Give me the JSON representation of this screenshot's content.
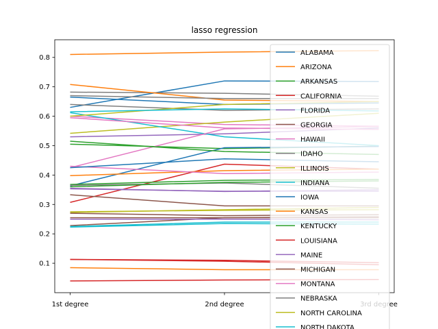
{
  "chart_data": {
    "type": "line",
    "title": "lasso regression",
    "xlabel": "",
    "ylabel": "",
    "categories": [
      "1st degree",
      "2nd degree",
      "3rd degree"
    ],
    "ylim": [
      0.0,
      0.86
    ],
    "yticks": [
      0.1,
      0.2,
      0.3,
      0.4,
      0.5,
      0.6,
      0.7,
      0.8
    ],
    "grid": false,
    "legend_position": "right",
    "series": [
      {
        "name": "ALABAMA",
        "color": "#1f77b4",
        "values": [
          0.63,
          0.72,
          0.718
        ]
      },
      {
        "name": "ARIZONA",
        "color": "#ff7f0e",
        "values": [
          0.81,
          0.818,
          0.823
        ]
      },
      {
        "name": "ARKANSAS",
        "color": "#2ca02c",
        "values": [
          0.505,
          0.49,
          0.498
        ]
      },
      {
        "name": "CALIFORNIA",
        "color": "#d62728",
        "values": [
          0.307,
          0.437,
          0.42
        ]
      },
      {
        "name": "FLORIDA",
        "color": "#9467bd",
        "values": [
          0.53,
          0.54,
          0.56
        ]
      },
      {
        "name": "GEORGIA",
        "color": "#8c564b",
        "values": [
          0.333,
          0.295,
          0.295
        ]
      },
      {
        "name": "HAWAII",
        "color": "#e377c2",
        "values": [
          0.6,
          0.572,
          0.566
        ]
      },
      {
        "name": "IDAHO",
        "color": "#7f7f7f",
        "values": [
          0.682,
          0.678,
          0.668
        ]
      },
      {
        "name": "ILLINOIS",
        "color": "#bcbd22",
        "values": [
          0.542,
          0.58,
          0.61
        ]
      },
      {
        "name": "INDIANA",
        "color": "#17becf",
        "values": [
          0.612,
          0.53,
          0.5
        ]
      },
      {
        "name": "IOWA",
        "color": "#1f77b4",
        "values": [
          0.363,
          0.493,
          0.497
        ]
      },
      {
        "name": "KANSAS",
        "color": "#ff7f0e",
        "values": [
          0.708,
          0.655,
          0.65
        ]
      },
      {
        "name": "KENTUCKY",
        "color": "#2ca02c",
        "values": [
          0.368,
          0.382,
          0.385
        ]
      },
      {
        "name": "LOUISIANA",
        "color": "#d62728",
        "values": [
          0.113,
          0.107,
          0.095
        ]
      },
      {
        "name": "MAINE",
        "color": "#9467bd",
        "values": [
          0.355,
          0.344,
          0.35
        ]
      },
      {
        "name": "MICHIGAN",
        "color": "#8c564b",
        "values": [
          0.228,
          0.255,
          0.258
        ]
      },
      {
        "name": "MONTANA",
        "color": "#e377c2",
        "values": [
          0.425,
          0.557,
          0.565
        ]
      },
      {
        "name": "NEBRASKA",
        "color": "#7f7f7f",
        "values": [
          0.365,
          0.373,
          0.355
        ]
      },
      {
        "name": "NORTH CAROLINA",
        "color": "#bcbd22",
        "values": [
          0.273,
          0.282,
          0.29
        ]
      },
      {
        "name": "NORTH DAKOTA",
        "color": "#17becf",
        "values": [
          0.223,
          0.235,
          0.233
        ]
      },
      {
        "name": "",
        "color": "#1f77b4",
        "values": [
          0.665,
          0.64,
          0.645
        ]
      },
      {
        "name": "",
        "color": "#ff7f0e",
        "values": [
          0.398,
          0.415,
          0.42
        ]
      },
      {
        "name": "",
        "color": "#2ca02c",
        "values": [
          0.515,
          0.48,
          0.47
        ]
      },
      {
        "name": "",
        "color": "#d62728",
        "values": [
          0.04,
          0.043,
          0.045
        ]
      },
      {
        "name": "",
        "color": "#9467bd",
        "values": [
          0.353,
          0.345,
          0.345
        ]
      },
      {
        "name": "",
        "color": "#8c564b",
        "values": [
          0.255,
          0.255,
          0.255
        ]
      },
      {
        "name": "",
        "color": "#e377c2",
        "values": [
          0.43,
          0.405,
          0.41
        ]
      },
      {
        "name": "",
        "color": "#7f7f7f",
        "values": [
          0.64,
          0.62,
          0.625
        ]
      },
      {
        "name": "",
        "color": "#bcbd22",
        "values": [
          0.6,
          0.64,
          0.65
        ]
      },
      {
        "name": "",
        "color": "#17becf",
        "values": [
          0.615,
          0.625,
          0.618
        ]
      },
      {
        "name": "",
        "color": "#1f77b4",
        "values": [
          0.425,
          0.455,
          0.445
        ]
      },
      {
        "name": "",
        "color": "#ff7f0e",
        "values": [
          0.085,
          0.078,
          0.078
        ]
      },
      {
        "name": "",
        "color": "#2ca02c",
        "values": [
          0.36,
          0.375,
          0.38
        ]
      },
      {
        "name": "",
        "color": "#d62728",
        "values": [
          0.113,
          0.11,
          0.102
        ]
      },
      {
        "name": "",
        "color": "#9467bd",
        "values": [
          0.25,
          0.25,
          0.248
        ]
      },
      {
        "name": "",
        "color": "#8c564b",
        "values": [
          0.27,
          0.262,
          0.265
        ]
      },
      {
        "name": "",
        "color": "#e377c2",
        "values": [
          0.595,
          0.56,
          0.555
        ]
      },
      {
        "name": "",
        "color": "#7f7f7f",
        "values": [
          0.67,
          0.66,
          0.66
        ]
      },
      {
        "name": "",
        "color": "#bcbd22",
        "values": [
          0.275,
          0.28,
          0.282
        ]
      },
      {
        "name": "",
        "color": "#17becf",
        "values": [
          0.225,
          0.24,
          0.24
        ]
      }
    ]
  }
}
